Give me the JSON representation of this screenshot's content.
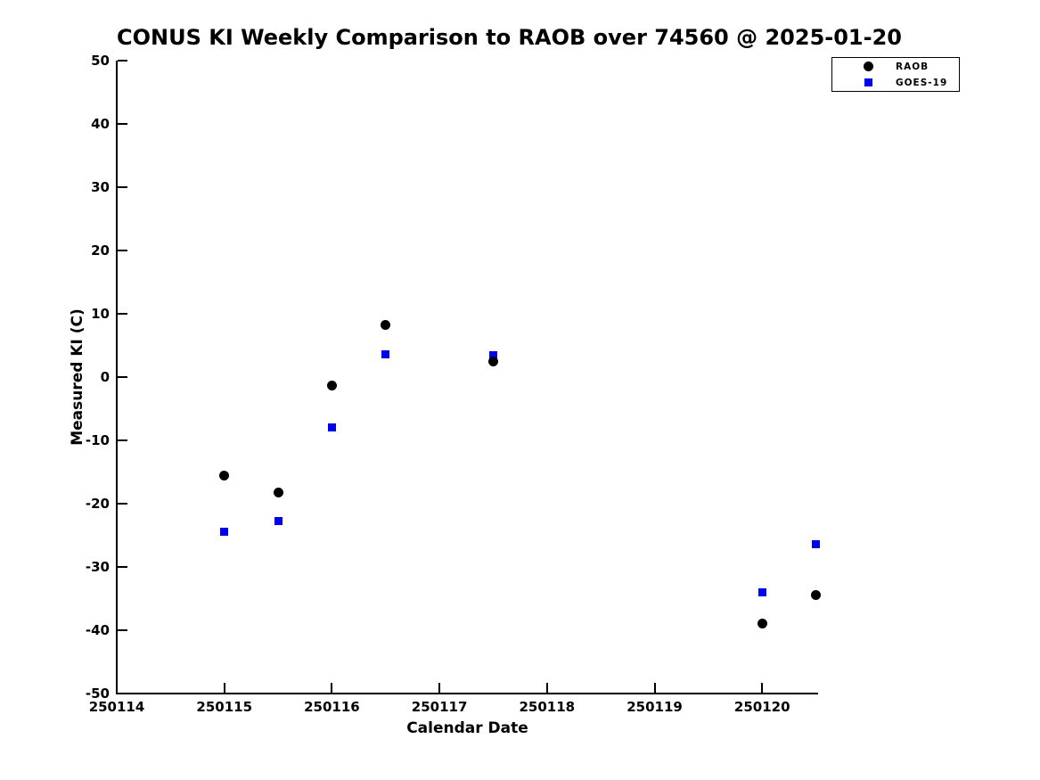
{
  "figure": {
    "background": "#ffffff",
    "text_color": "#000000"
  },
  "chart_data": {
    "type": "scatter",
    "title": "CONUS KI Weekly Comparison to RAOB over 74560 @ 2025-01-20",
    "xlabel": "Calendar Date",
    "ylabel": "Measured KI (C)",
    "xlim": [
      250114,
      250120.52
    ],
    "ylim": [
      -50,
      50
    ],
    "x_ticks": [
      250114,
      250115,
      250116,
      250117,
      250118,
      250119,
      250120
    ],
    "y_ticks": [
      50,
      40,
      30,
      20,
      10,
      0,
      -10,
      -20,
      -30,
      -40,
      -50
    ],
    "grid": false,
    "legend_position": "top-right-outside",
    "series": [
      {
        "name": "GOES-19",
        "marker": "square",
        "color": "#0000ee",
        "x": [
          250115.0,
          250115.5,
          250116.0,
          250116.5,
          250117.5,
          250120.0,
          250120.5
        ],
        "y": [
          -24.5,
          -22.8,
          -8.0,
          3.6,
          3.5,
          -34.0,
          -26.4
        ]
      },
      {
        "name": "RAOB",
        "marker": "circle",
        "color": "#000000",
        "x": [
          250115.0,
          250115.5,
          250116.0,
          250116.5,
          250117.5,
          250120.0,
          250120.5
        ],
        "y": [
          -15.5,
          -18.3,
          -1.3,
          8.3,
          2.4,
          -39.0,
          -34.4
        ]
      }
    ],
    "legend_order": [
      "RAOB",
      "GOES-19"
    ]
  }
}
